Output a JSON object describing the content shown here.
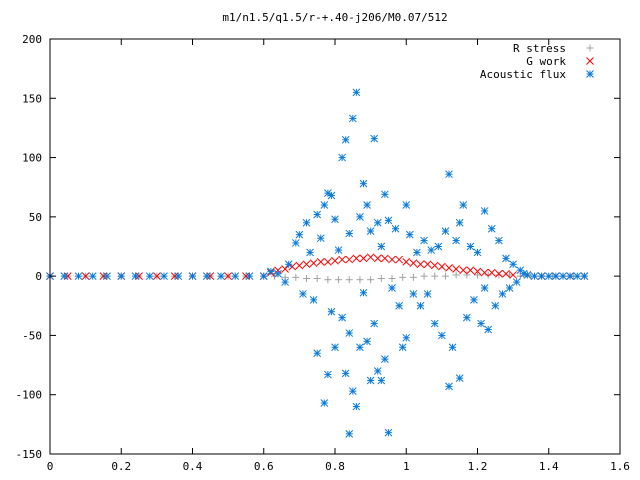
{
  "chart_data": {
    "type": "scatter",
    "title": "m1/n1.5/q1.5/r-+.40-j206/M0.07/512",
    "xlabel": "",
    "ylabel": "",
    "xlim": [
      0,
      1.6
    ],
    "ylim": [
      -150,
      200
    ],
    "xticks": [
      0,
      0.2,
      0.4,
      0.6,
      0.8,
      1,
      1.2,
      1.4,
      1.6
    ],
    "yticks": [
      -150,
      -100,
      -50,
      0,
      50,
      100,
      150,
      200
    ],
    "xtick_labels": [
      "0",
      "0.2",
      "0.4",
      "0.6",
      "0.8",
      "1",
      "1.2",
      "1.4",
      "1.6"
    ],
    "ytick_labels": [
      "-150",
      "-100",
      "-50",
      "0",
      "50",
      "100",
      "150",
      "200"
    ],
    "legend_position": "top-right",
    "grid": false,
    "series": [
      {
        "name": "R stress",
        "marker": "plus",
        "color": "#a0a0a0",
        "points": [
          [
            0.0,
            0
          ],
          [
            0.05,
            0
          ],
          [
            0.1,
            0
          ],
          [
            0.15,
            0
          ],
          [
            0.2,
            0
          ],
          [
            0.25,
            0
          ],
          [
            0.3,
            0
          ],
          [
            0.35,
            0
          ],
          [
            0.4,
            0
          ],
          [
            0.45,
            0
          ],
          [
            0.5,
            0
          ],
          [
            0.55,
            0
          ],
          [
            0.6,
            0
          ],
          [
            0.63,
            0
          ],
          [
            0.66,
            -1
          ],
          [
            0.69,
            -1
          ],
          [
            0.72,
            -2
          ],
          [
            0.75,
            -2
          ],
          [
            0.78,
            -3
          ],
          [
            0.81,
            -3
          ],
          [
            0.84,
            -3
          ],
          [
            0.87,
            -3
          ],
          [
            0.9,
            -3
          ],
          [
            0.93,
            -2
          ],
          [
            0.96,
            -2
          ],
          [
            0.99,
            -1
          ],
          [
            1.02,
            -1
          ],
          [
            1.05,
            0
          ],
          [
            1.08,
            0
          ],
          [
            1.11,
            0
          ],
          [
            1.14,
            1
          ],
          [
            1.17,
            1
          ],
          [
            1.2,
            1
          ],
          [
            1.23,
            1
          ],
          [
            1.26,
            1
          ],
          [
            1.29,
            1
          ],
          [
            1.32,
            0
          ],
          [
            1.35,
            0
          ],
          [
            1.38,
            0
          ],
          [
            1.41,
            0
          ],
          [
            1.44,
            0
          ],
          [
            1.47,
            0
          ],
          [
            1.5,
            0
          ]
        ]
      },
      {
        "name": "G work",
        "marker": "cross",
        "color": "#ff0000",
        "points": [
          [
            0.0,
            0
          ],
          [
            0.05,
            0
          ],
          [
            0.1,
            0
          ],
          [
            0.15,
            0
          ],
          [
            0.2,
            0
          ],
          [
            0.25,
            0
          ],
          [
            0.3,
            0
          ],
          [
            0.35,
            0
          ],
          [
            0.4,
            0
          ],
          [
            0.45,
            0
          ],
          [
            0.5,
            0
          ],
          [
            0.55,
            0
          ],
          [
            0.6,
            0
          ],
          [
            0.62,
            3
          ],
          [
            0.64,
            5
          ],
          [
            0.66,
            6
          ],
          [
            0.68,
            8
          ],
          [
            0.7,
            9
          ],
          [
            0.72,
            10
          ],
          [
            0.74,
            11
          ],
          [
            0.76,
            12
          ],
          [
            0.78,
            12
          ],
          [
            0.8,
            13
          ],
          [
            0.82,
            14
          ],
          [
            0.84,
            14
          ],
          [
            0.86,
            15
          ],
          [
            0.88,
            15
          ],
          [
            0.9,
            16
          ],
          [
            0.92,
            15
          ],
          [
            0.94,
            15
          ],
          [
            0.96,
            14
          ],
          [
            0.98,
            14
          ],
          [
            1.0,
            12
          ],
          [
            1.02,
            11
          ],
          [
            1.04,
            10
          ],
          [
            1.06,
            10
          ],
          [
            1.08,
            9
          ],
          [
            1.1,
            8
          ],
          [
            1.12,
            7
          ],
          [
            1.14,
            6
          ],
          [
            1.16,
            5
          ],
          [
            1.18,
            5
          ],
          [
            1.2,
            4
          ],
          [
            1.22,
            3
          ],
          [
            1.24,
            3
          ],
          [
            1.26,
            2
          ],
          [
            1.28,
            2
          ],
          [
            1.3,
            1
          ],
          [
            1.34,
            1
          ],
          [
            1.38,
            0
          ],
          [
            1.42,
            0
          ],
          [
            1.46,
            0
          ],
          [
            1.5,
            0
          ]
        ]
      },
      {
        "name": "Acoustic flux",
        "marker": "star",
        "color": "#0a7ad8",
        "points": [
          [
            0.0,
            0
          ],
          [
            0.04,
            0
          ],
          [
            0.08,
            0
          ],
          [
            0.12,
            0
          ],
          [
            0.16,
            0
          ],
          [
            0.2,
            0
          ],
          [
            0.24,
            0
          ],
          [
            0.28,
            0
          ],
          [
            0.32,
            0
          ],
          [
            0.36,
            0
          ],
          [
            0.4,
            0
          ],
          [
            0.44,
            0
          ],
          [
            0.48,
            0
          ],
          [
            0.52,
            0
          ],
          [
            0.56,
            0
          ],
          [
            0.6,
            0
          ],
          [
            0.62,
            4
          ],
          [
            0.64,
            2
          ],
          [
            0.66,
            -5
          ],
          [
            0.67,
            10
          ],
          [
            0.69,
            28
          ],
          [
            0.7,
            35
          ],
          [
            0.71,
            -15
          ],
          [
            0.72,
            45
          ],
          [
            0.73,
            20
          ],
          [
            0.74,
            -20
          ],
          [
            0.75,
            52
          ],
          [
            0.75,
            -65
          ],
          [
            0.76,
            32
          ],
          [
            0.77,
            60
          ],
          [
            0.77,
            -107
          ],
          [
            0.78,
            70
          ],
          [
            0.78,
            -83
          ],
          [
            0.79,
            68
          ],
          [
            0.79,
            -30
          ],
          [
            0.8,
            48
          ],
          [
            0.8,
            -60
          ],
          [
            0.81,
            22
          ],
          [
            0.82,
            -35
          ],
          [
            0.82,
            100
          ],
          [
            0.83,
            -82
          ],
          [
            0.83,
            115
          ],
          [
            0.84,
            -133
          ],
          [
            0.84,
            -48
          ],
          [
            0.84,
            36
          ],
          [
            0.85,
            133
          ],
          [
            0.85,
            -97
          ],
          [
            0.86,
            155
          ],
          [
            0.86,
            -110
          ],
          [
            0.87,
            50
          ],
          [
            0.87,
            -60
          ],
          [
            0.88,
            78
          ],
          [
            0.88,
            -14
          ],
          [
            0.89,
            60
          ],
          [
            0.89,
            -55
          ],
          [
            0.9,
            -88
          ],
          [
            0.9,
            38
          ],
          [
            0.91,
            116
          ],
          [
            0.91,
            -40
          ],
          [
            0.92,
            -80
          ],
          [
            0.92,
            45
          ],
          [
            0.93,
            -88
          ],
          [
            0.93,
            25
          ],
          [
            0.94,
            69
          ],
          [
            0.94,
            -70
          ],
          [
            0.95,
            -132
          ],
          [
            0.95,
            47
          ],
          [
            0.96,
            -10
          ],
          [
            0.97,
            40
          ],
          [
            0.98,
            -25
          ],
          [
            0.99,
            -60
          ],
          [
            1.0,
            60
          ],
          [
            1.0,
            -52
          ],
          [
            1.01,
            35
          ],
          [
            1.02,
            -15
          ],
          [
            1.03,
            20
          ],
          [
            1.04,
            -25
          ],
          [
            1.05,
            30
          ],
          [
            1.06,
            -15
          ],
          [
            1.07,
            22
          ],
          [
            1.08,
            -40
          ],
          [
            1.09,
            25
          ],
          [
            1.1,
            -50
          ],
          [
            1.11,
            38
          ],
          [
            1.12,
            -93
          ],
          [
            1.12,
            86
          ],
          [
            1.13,
            -60
          ],
          [
            1.14,
            30
          ],
          [
            1.15,
            -86
          ],
          [
            1.15,
            45
          ],
          [
            1.16,
            60
          ],
          [
            1.17,
            -35
          ],
          [
            1.18,
            25
          ],
          [
            1.19,
            -20
          ],
          [
            1.2,
            20
          ],
          [
            1.21,
            -40
          ],
          [
            1.22,
            55
          ],
          [
            1.22,
            -10
          ],
          [
            1.23,
            -45
          ],
          [
            1.24,
            40
          ],
          [
            1.25,
            -25
          ],
          [
            1.26,
            30
          ],
          [
            1.27,
            -15
          ],
          [
            1.28,
            15
          ],
          [
            1.29,
            -10
          ],
          [
            1.3,
            10
          ],
          [
            1.31,
            -5
          ],
          [
            1.32,
            5
          ],
          [
            1.33,
            2
          ],
          [
            1.34,
            1
          ],
          [
            1.36,
            0
          ],
          [
            1.38,
            0
          ],
          [
            1.4,
            0
          ],
          [
            1.42,
            0
          ],
          [
            1.44,
            0
          ],
          [
            1.46,
            0
          ],
          [
            1.48,
            0
          ],
          [
            1.5,
            0
          ]
        ]
      }
    ]
  }
}
